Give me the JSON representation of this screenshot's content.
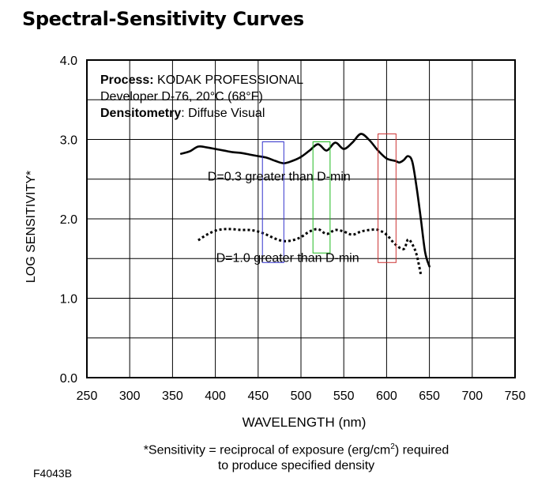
{
  "page": {
    "title": "Spectral-Sensitivity Curves",
    "figure_code": "F4043B"
  },
  "footnote": {
    "line1_prefix": "*Sensitivity = reciprocal of exposure (erg/cm",
    "line1_sup": "2",
    "line1_suffix": ") required",
    "line2": "to produce specified density"
  },
  "chart_data": {
    "type": "line",
    "title": "Spectral-Sensitivity Curves",
    "xlabel": "WAVELENGTH (nm)",
    "ylabel": "LOG SENSITIVITY*",
    "xlim": [
      250,
      750
    ],
    "ylim": [
      0.0,
      4.0
    ],
    "xticks": [
      "250",
      "300",
      "350",
      "400",
      "450",
      "500",
      "550",
      "600",
      "650",
      "700",
      "750"
    ],
    "yticks": [
      "0.0",
      "1.0",
      "2.0",
      "3.0",
      "4.0"
    ],
    "grid": true,
    "info_box": [
      {
        "bold": "Process:",
        "text": " KODAK PROFESSIONAL"
      },
      {
        "bold": "",
        "text": "Developer D-76, 20°C (68°F)"
      },
      {
        "bold": "Densitometry",
        "text": ": Diffuse Visual"
      }
    ],
    "series": [
      {
        "name": "D=0.3 greater than D-min",
        "style": "solid",
        "color": "#000000",
        "x": [
          360,
          370,
          380,
          390,
          400,
          410,
          420,
          430,
          440,
          450,
          460,
          470,
          480,
          490,
          500,
          510,
          520,
          530,
          540,
          550,
          560,
          570,
          580,
          590,
          600,
          610,
          615,
          620,
          625,
          630,
          635,
          640,
          645,
          650
        ],
        "y": [
          2.82,
          2.85,
          2.91,
          2.9,
          2.88,
          2.86,
          2.84,
          2.83,
          2.81,
          2.79,
          2.77,
          2.73,
          2.7,
          2.73,
          2.78,
          2.86,
          2.94,
          2.86,
          2.96,
          2.88,
          2.96,
          3.07,
          2.99,
          2.86,
          2.76,
          2.73,
          2.71,
          2.74,
          2.79,
          2.72,
          2.4,
          2.0,
          1.58,
          1.4
        ]
      },
      {
        "name": "D=1.0 greater than D-min",
        "style": "dotted",
        "color": "#000000",
        "x": [
          380,
          390,
          400,
          410,
          420,
          430,
          440,
          450,
          460,
          470,
          480,
          490,
          500,
          510,
          520,
          530,
          540,
          550,
          560,
          570,
          580,
          590,
          600,
          610,
          620,
          625,
          630,
          635,
          640
        ],
        "y": [
          1.73,
          1.8,
          1.85,
          1.87,
          1.87,
          1.86,
          1.86,
          1.84,
          1.8,
          1.75,
          1.72,
          1.73,
          1.77,
          1.84,
          1.87,
          1.81,
          1.86,
          1.84,
          1.8,
          1.84,
          1.86,
          1.86,
          1.8,
          1.68,
          1.62,
          1.74,
          1.68,
          1.55,
          1.3
        ]
      }
    ],
    "annotations": [
      {
        "text": "D=0.3 greater than D-min",
        "x": 450,
        "y": 2.52
      },
      {
        "text": "D=1.0 greater than D-min",
        "x": 460,
        "y": 1.5
      }
    ],
    "highlight_boxes": [
      {
        "color": "#3333cc",
        "x0": 455,
        "x1": 480,
        "y0": 1.45,
        "y1": 2.97
      },
      {
        "color": "#22bb22",
        "x0": 514,
        "x1": 534,
        "y0": 1.57,
        "y1": 2.97
      },
      {
        "color": "#cc3333",
        "x0": 590,
        "x1": 611,
        "y0": 1.45,
        "y1": 3.07
      }
    ]
  }
}
